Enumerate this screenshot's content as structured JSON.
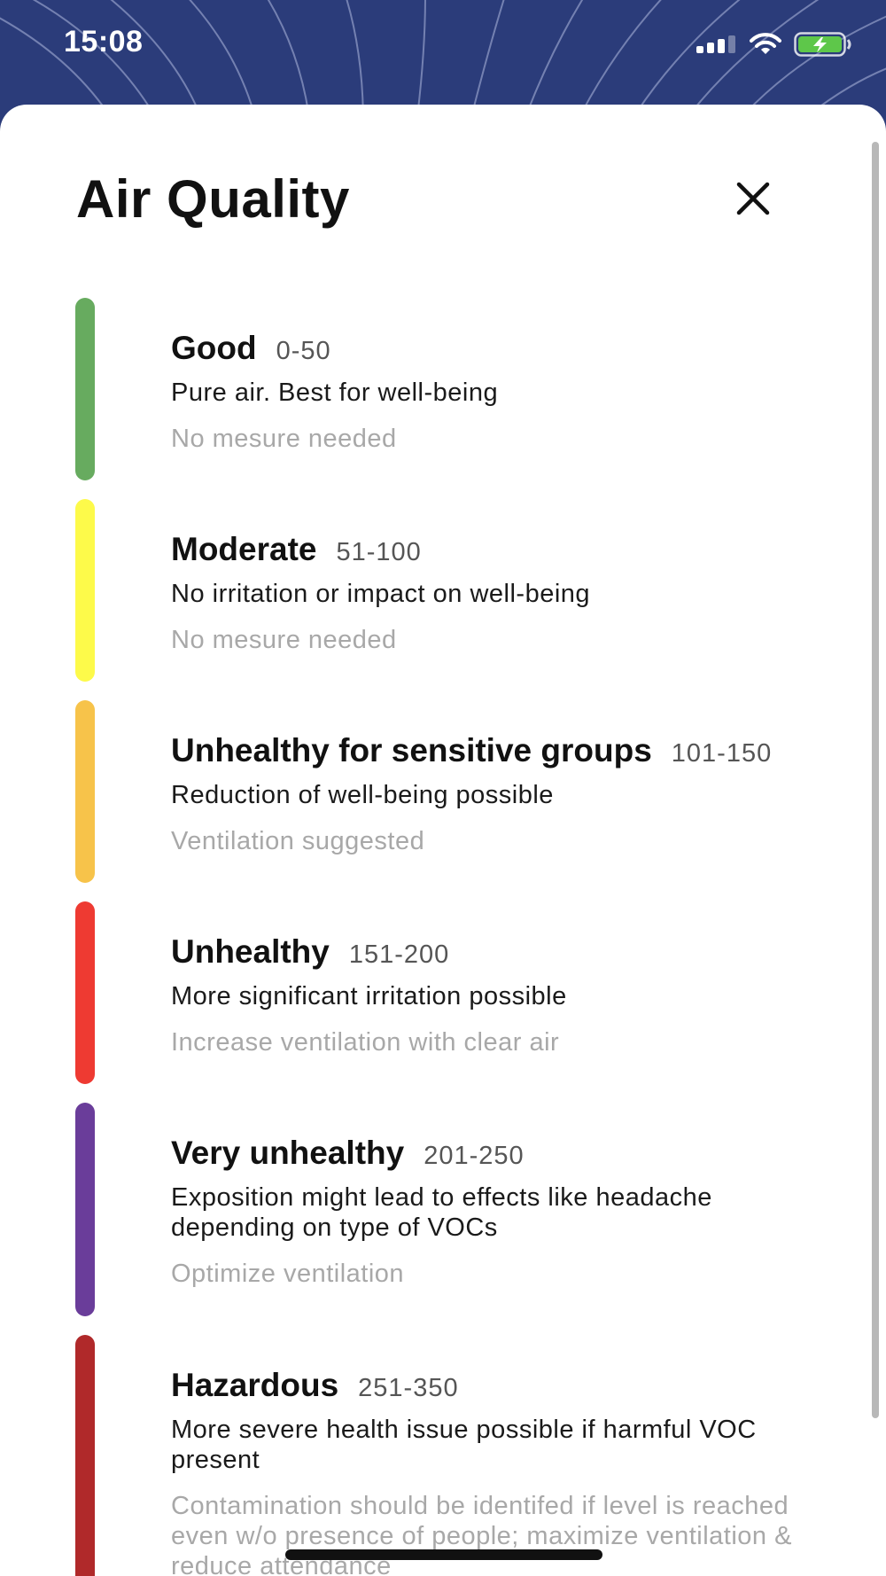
{
  "status_bar": {
    "time": "15:08",
    "icons": [
      "cellular-signal-icon",
      "wifi-icon",
      "battery-charging-icon"
    ]
  },
  "colors": {
    "header_background": "#2b3c7a",
    "sheet_background": "#ffffff",
    "battery_green": "#5ec74a"
  },
  "sheet": {
    "title": "Air Quality",
    "close_icon": "close-icon"
  },
  "levels": [
    {
      "name": "Good",
      "range": "0-50",
      "description": "Pure air. Best for well-being",
      "measure": "No mesure needed",
      "color": "#67ab5f"
    },
    {
      "name": "Moderate",
      "range": "51-100",
      "description": "No irritation or impact on well-being",
      "measure": "No mesure needed",
      "color": "#fdfa4a"
    },
    {
      "name": "Unhealthy for sensitive groups",
      "range": "101-150",
      "description": "Reduction of well-being possible",
      "measure": "Ventilation suggested",
      "color": "#f7c34a"
    },
    {
      "name": "Unhealthy",
      "range": "151-200",
      "description": "More significant irritation possible",
      "measure": "Increase ventilation with clear air",
      "color": "#ee3a32"
    },
    {
      "name": "Very unhealthy",
      "range": "201-250",
      "description": "Exposition might lead to effects like headache depending on type of VOCs",
      "measure": "Optimize ventilation",
      "color": "#6a3d9a"
    },
    {
      "name": "Hazardous",
      "range": "251-350",
      "description": "More severe health issue possible if harmful VOC present",
      "measure": "Contamination should be identifed if level is reached even w/o presence of people; maximize ventilation & reduce attendance",
      "color": "#b0292a"
    }
  ]
}
